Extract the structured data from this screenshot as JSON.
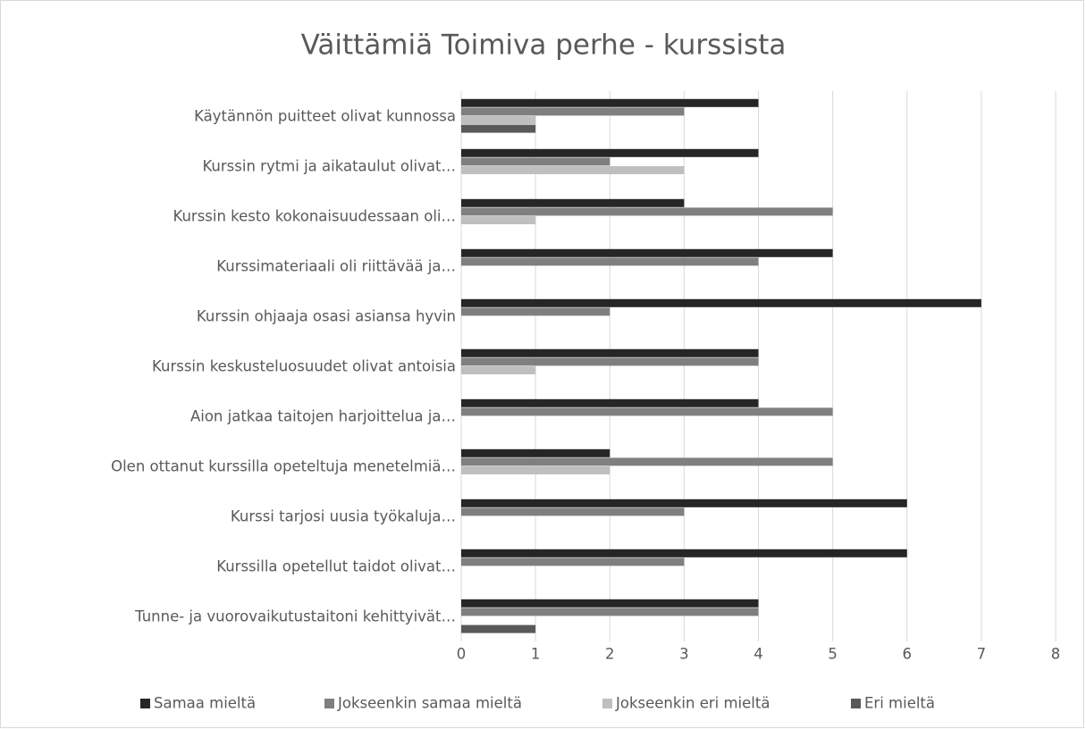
{
  "chart_data": {
    "type": "hbar",
    "title": "Väittämiä Toimiva perhe - kurssista",
    "categories": [
      "Käytännön puitteet olivat kunnossa",
      "Kurssin rytmi ja aikataulut olivat…",
      "Kurssin kesto kokonaisuudessaan oli…",
      "Kurssimateriaali oli riittävää ja…",
      "Kurssin ohjaaja osasi asiansa hyvin",
      "Kurssin keskusteluosuudet olivat antoisia",
      "Aion jatkaa taitojen harjoittelua ja…",
      "Olen ottanut kurssilla opeteltuja menetelmiä…",
      "Kurssi tarjosi uusia työkaluja…",
      "Kurssilla opetellut taidot olivat…",
      "Tunne- ja vuorovaikutustaitoni kehittyivät…"
    ],
    "series": [
      {
        "name": "Samaa mieltä",
        "color": "#262626",
        "values": [
          4,
          4,
          3,
          5,
          7,
          4,
          4,
          2,
          6,
          6,
          4
        ]
      },
      {
        "name": "Jokseenkin samaa mieltä",
        "color": "#7f7f7f",
        "values": [
          3,
          2,
          5,
          4,
          2,
          4,
          5,
          5,
          3,
          3,
          4
        ]
      },
      {
        "name": "Jokseenkin eri mieltä",
        "color": "#bfbfbf",
        "values": [
          1,
          3,
          1,
          0,
          0,
          1,
          0,
          2,
          0,
          0,
          0
        ]
      },
      {
        "name": "Eri mieltä",
        "color": "#595959",
        "values": [
          1,
          0,
          0,
          0,
          0,
          0,
          0,
          0,
          0,
          0,
          1
        ]
      }
    ],
    "xlim": [
      0,
      8
    ],
    "xticks": [
      0,
      1,
      2,
      3,
      4,
      5,
      6,
      7,
      8
    ],
    "grid": true,
    "legend": "bottom"
  }
}
